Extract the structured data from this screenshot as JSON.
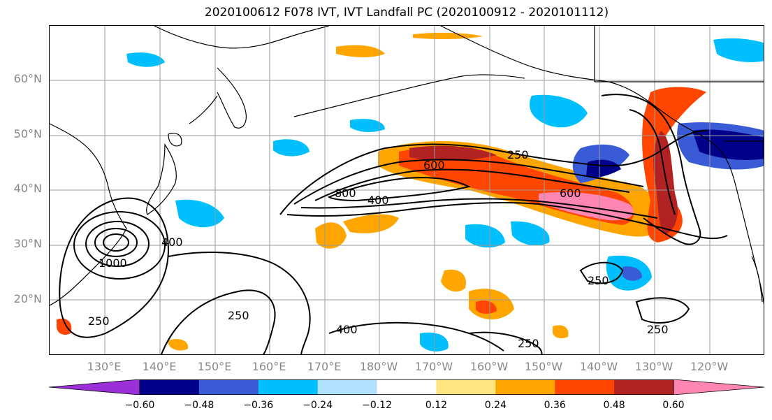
{
  "title": "2020100612 F078 IVT, IVT Landfall PC (2020100912 - 2020101112)",
  "lat_labels": [
    "60°N",
    "50°N",
    "40°N",
    "30°N",
    "20°N"
  ],
  "lon_labels": [
    "130°E",
    "140°E",
    "150°E",
    "160°E",
    "170°E",
    "180°W",
    "170°W",
    "160°W",
    "150°W",
    "140°W",
    "130°W",
    "120°W"
  ],
  "contour_labels": [
    "250",
    "600",
    "800",
    "400",
    "600",
    "1000",
    "400",
    "250",
    "250",
    "400",
    "250",
    "250",
    "250"
  ],
  "colorbar": {
    "tick_labels": [
      "−0.60",
      "−0.48",
      "−0.36",
      "−0.24",
      "−0.12",
      "0.12",
      "0.24",
      "0.36",
      "0.48",
      "0.60"
    ],
    "colors": [
      "#9b30d9",
      "#00008b",
      "#3a5bd6",
      "#00bfff",
      "#b0e2ff",
      "#ffffff",
      "#ffe680",
      "#ffa500",
      "#ff4500",
      "#b22222",
      "#ff85b3"
    ],
    "extend": "both"
  },
  "colors": {
    "coast": "#000000",
    "grid": "#9a9a9a",
    "contour": "#000000"
  }
}
